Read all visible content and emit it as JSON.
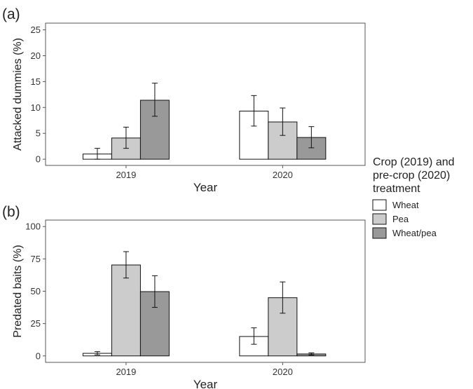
{
  "legend": {
    "title_lines": [
      "Crop (2019) and",
      "pre-crop (2020)",
      "treatment"
    ],
    "items": [
      {
        "label": "Wheat",
        "color": "#ffffff"
      },
      {
        "label": "Pea",
        "color": "#cccccc"
      },
      {
        "label": "Wheat/pea",
        "color": "#999999"
      }
    ]
  },
  "chart_data": [
    {
      "panel_label": "(a)",
      "type": "bar",
      "categories": [
        "2019",
        "2020"
      ],
      "series": [
        {
          "name": "Wheat",
          "color": "#ffffff",
          "values": [
            1.0,
            9.3
          ],
          "err_low": [
            0.0,
            6.4
          ],
          "err_high": [
            2.1,
            12.3
          ]
        },
        {
          "name": "Pea",
          "color": "#cccccc",
          "values": [
            4.1,
            7.2
          ],
          "err_low": [
            2.1,
            4.6
          ],
          "err_high": [
            6.2,
            9.9
          ]
        },
        {
          "name": "Wheat/pea",
          "color": "#999999",
          "values": [
            11.4,
            4.2
          ],
          "err_low": [
            8.3,
            2.2
          ],
          "err_high": [
            14.7,
            6.3
          ]
        }
      ],
      "xlabel": "Year",
      "ylabel": "Attacked dummies (%)",
      "ylim": [
        -1.2,
        26.3
      ],
      "yticks": [
        0,
        5,
        10,
        15,
        20,
        25
      ],
      "grid": false,
      "legend_position": "right"
    },
    {
      "panel_label": "(b)",
      "type": "bar",
      "categories": [
        "2019",
        "2020"
      ],
      "series": [
        {
          "name": "Wheat",
          "color": "#ffffff",
          "values": [
            2.0,
            15.0
          ],
          "err_low": [
            0.8,
            9.0
          ],
          "err_high": [
            3.3,
            21.7
          ]
        },
        {
          "name": "Pea",
          "color": "#cccccc",
          "values": [
            70.3,
            45.0
          ],
          "err_low": [
            60.2,
            33.0
          ],
          "err_high": [
            80.6,
            57.2
          ]
        },
        {
          "name": "Wheat/pea",
          "color": "#999999",
          "values": [
            49.7,
            1.5
          ],
          "err_low": [
            37.5,
            0.7
          ],
          "err_high": [
            62.0,
            2.3
          ]
        }
      ],
      "xlabel": "Year",
      "ylabel": "Predated baits (%)",
      "ylim": [
        -5,
        105
      ],
      "yticks": [
        0,
        25,
        50,
        75,
        100
      ],
      "grid": false,
      "legend_position": "right"
    }
  ]
}
